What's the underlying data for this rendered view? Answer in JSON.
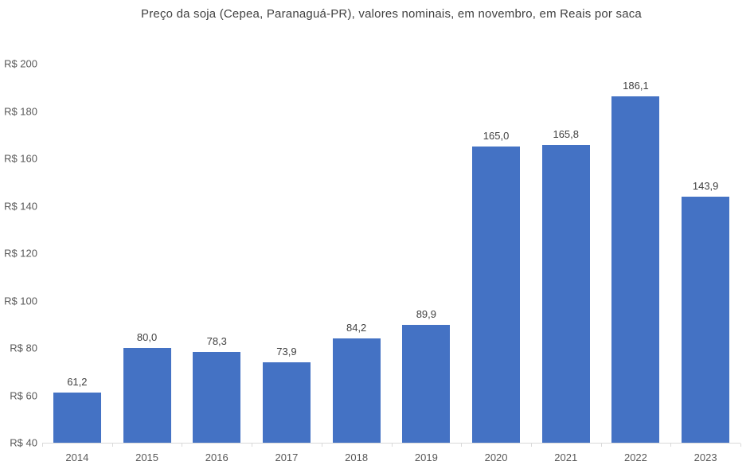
{
  "chart_data": {
    "type": "bar",
    "title": "Preço da soja (Cepea, Paranaguá-PR), valores nominais, em novembro, em Reais por saca",
    "categories": [
      "2014",
      "2015",
      "2016",
      "2017",
      "2018",
      "2019",
      "2020",
      "2021",
      "2022",
      "2023"
    ],
    "values": [
      61.2,
      80.0,
      78.3,
      73.9,
      84.2,
      89.9,
      165.0,
      165.8,
      186.1,
      143.9
    ],
    "value_labels": [
      "61,2",
      "80,0",
      "78,3",
      "73,9",
      "84,2",
      "89,9",
      "165,0",
      "165,8",
      "186,1",
      "143,9"
    ],
    "xlabel": "",
    "ylabel": "",
    "ylim": [
      40,
      200
    ],
    "y_tick_step": 20,
    "y_tick_labels": [
      "R$ 40",
      "R$ 60",
      "R$ 80",
      "R$ 100",
      "R$ 120",
      "R$ 140",
      "R$ 160",
      "R$ 180",
      "R$ 200"
    ],
    "grid": false,
    "legend": false,
    "currency_prefix": "R$",
    "bar_color": "#4472C4",
    "axis_line_color": "#D9D9D9",
    "title_color": "#404040",
    "data_label_color": "#404040",
    "tick_label_color": "#595959"
  }
}
